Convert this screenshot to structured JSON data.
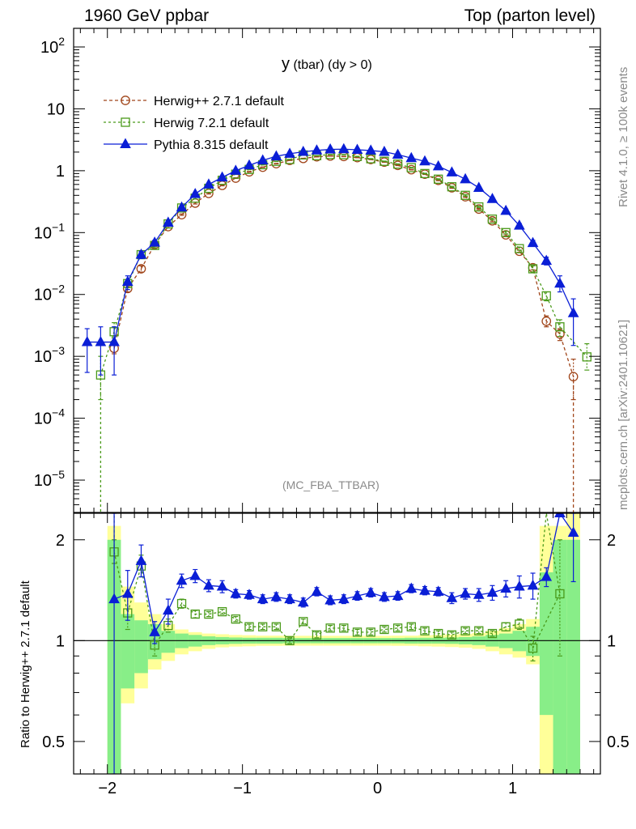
{
  "header": {
    "left": "1960 GeV ppbar",
    "right": "Top (parton level)"
  },
  "side": {
    "rivet": "Rivet 4.1.0, ≥ 100k events",
    "mcplots": "mcplots.cern.ch [arXiv:2401.10621]"
  },
  "chart_data": {
    "type": "line",
    "title": "y (tbar) (dy > 0)",
    "title_main": "y",
    "title_rest": "(tbar) (dy > 0)",
    "watermark": "(MC_FBA_TTBAR)",
    "xlabel": "",
    "ylabel": "",
    "ratio_ylabel": "Ratio to Herwig++ 2.7.1 default",
    "xlim": [
      -2.25,
      1.65
    ],
    "ylim": [
      3e-06,
      200
    ],
    "ratio_ylim": [
      0.4,
      2.4
    ],
    "x_ticks": [
      -2,
      -1,
      0,
      1
    ],
    "x_tick_labels": [
      "−2",
      "−1",
      "0",
      "1"
    ],
    "y_ticks": [
      {
        "value": 100,
        "base": "10",
        "exp": "2"
      },
      {
        "value": 10,
        "base": "10",
        "exp": ""
      },
      {
        "value": 1,
        "base": "1",
        "exp": ""
      },
      {
        "value": 0.1,
        "base": "10",
        "exp": "−1"
      },
      {
        "value": 0.01,
        "base": "10",
        "exp": "−2"
      },
      {
        "value": 0.001,
        "base": "10",
        "exp": "−3"
      },
      {
        "value": 0.0001,
        "base": "10",
        "exp": "−4"
      },
      {
        "value": 1e-05,
        "base": "10",
        "exp": "−5"
      }
    ],
    "ratio_ticks": [
      {
        "value": 2,
        "label": "2"
      },
      {
        "value": 1,
        "label": "1"
      },
      {
        "value": 0.5,
        "label": "0.5"
      }
    ],
    "bin_width": 0.1,
    "reference_bands": {
      "x_low": [
        -2.0,
        -1.9,
        -1.8,
        -1.7,
        -1.6,
        -1.5,
        -1.4,
        -1.3,
        -1.2,
        -1.1,
        -1.0,
        -0.9,
        -0.8,
        -0.7,
        -0.6,
        -0.5,
        -0.4,
        -0.3,
        -0.2,
        -0.1,
        0.0,
        0.1,
        0.2,
        0.3,
        0.4,
        0.5,
        0.6,
        0.7,
        0.8,
        0.9,
        1.0,
        1.1,
        1.2,
        1.3,
        1.4
      ],
      "green": [
        [
          0.3,
          2.0
        ],
        [
          0.72,
          1.2
        ],
        [
          0.8,
          1.15
        ],
        [
          0.88,
          1.12
        ],
        [
          0.92,
          1.07
        ],
        [
          0.95,
          1.05
        ],
        [
          0.96,
          1.04
        ],
        [
          0.97,
          1.03
        ],
        [
          0.975,
          1.025
        ],
        [
          0.978,
          1.022
        ],
        [
          0.98,
          1.02
        ],
        [
          0.98,
          1.02
        ],
        [
          0.98,
          1.02
        ],
        [
          0.982,
          1.018
        ],
        [
          0.982,
          1.018
        ],
        [
          0.982,
          1.018
        ],
        [
          0.982,
          1.018
        ],
        [
          0.982,
          1.018
        ],
        [
          0.982,
          1.018
        ],
        [
          0.982,
          1.018
        ],
        [
          0.982,
          1.018
        ],
        [
          0.982,
          1.018
        ],
        [
          0.98,
          1.02
        ],
        [
          0.98,
          1.02
        ],
        [
          0.98,
          1.02
        ],
        [
          0.978,
          1.022
        ],
        [
          0.975,
          1.025
        ],
        [
          0.97,
          1.03
        ],
        [
          0.96,
          1.04
        ],
        [
          0.95,
          1.05
        ],
        [
          0.93,
          1.07
        ],
        [
          0.9,
          1.1
        ],
        [
          0.6,
          1.6
        ],
        [
          0.3,
          2.0
        ],
        [
          0.3,
          2.0
        ]
      ],
      "yellow": [
        [
          0.3,
          2.2
        ],
        [
          0.65,
          1.45
        ],
        [
          0.72,
          1.3
        ],
        [
          0.82,
          1.2
        ],
        [
          0.87,
          1.12
        ],
        [
          0.91,
          1.08
        ],
        [
          0.93,
          1.06
        ],
        [
          0.945,
          1.05
        ],
        [
          0.955,
          1.045
        ],
        [
          0.96,
          1.04
        ],
        [
          0.962,
          1.038
        ],
        [
          0.965,
          1.035
        ],
        [
          0.965,
          1.035
        ],
        [
          0.966,
          1.034
        ],
        [
          0.966,
          1.034
        ],
        [
          0.966,
          1.034
        ],
        [
          0.966,
          1.034
        ],
        [
          0.966,
          1.034
        ],
        [
          0.966,
          1.034
        ],
        [
          0.966,
          1.034
        ],
        [
          0.966,
          1.034
        ],
        [
          0.965,
          1.035
        ],
        [
          0.965,
          1.035
        ],
        [
          0.962,
          1.038
        ],
        [
          0.96,
          1.04
        ],
        [
          0.957,
          1.043
        ],
        [
          0.953,
          1.047
        ],
        [
          0.945,
          1.055
        ],
        [
          0.93,
          1.07
        ],
        [
          0.91,
          1.09
        ],
        [
          0.89,
          1.12
        ],
        [
          0.85,
          1.16
        ],
        [
          0.35,
          2.2
        ],
        [
          0.35,
          2.2
        ],
        [
          0.35,
          2.4
        ]
      ]
    },
    "series": [
      {
        "name": "Herwig++ 2.7.1 default",
        "color": "#a0451a",
        "marker": "circle",
        "x": [
          -1.95,
          -1.85,
          -1.75,
          -1.65,
          -1.55,
          -1.45,
          -1.35,
          -1.25,
          -1.15,
          -1.05,
          -0.95,
          -0.85,
          -0.75,
          -0.65,
          -0.55,
          -0.45,
          -0.35,
          -0.25,
          -0.15,
          -0.05,
          0.05,
          0.15,
          0.25,
          0.35,
          0.45,
          0.55,
          0.65,
          0.75,
          0.85,
          0.95,
          1.05,
          1.15,
          1.25,
          1.35,
          1.45
        ],
        "y": [
          0.00135,
          0.0125,
          0.026,
          0.064,
          0.125,
          0.195,
          0.3,
          0.43,
          0.58,
          0.76,
          0.96,
          1.14,
          1.3,
          1.47,
          1.58,
          1.68,
          1.73,
          1.7,
          1.63,
          1.52,
          1.38,
          1.22,
          1.04,
          0.88,
          0.7,
          0.53,
          0.38,
          0.24,
          0.155,
          0.092,
          0.05,
          0.027,
          0.0037,
          0.0023,
          0.00047
        ],
        "ratio": [
          1.0,
          1.0,
          1.0,
          1.0,
          1.0,
          1.0,
          1.0,
          1.0,
          1.0,
          1.0,
          1.0,
          1.0,
          1.0,
          1.0,
          1.0,
          1.0,
          1.0,
          1.0,
          1.0,
          1.0,
          1.0,
          1.0,
          1.0,
          1.0,
          1.0,
          1.0,
          1.0,
          1.0,
          1.0,
          1.0,
          1.0,
          1.0,
          1.0,
          1.0,
          1.0
        ],
        "err_up": [
          0.0016,
          0.014,
          0.029,
          0.068,
          0.13,
          0.2,
          0.31,
          0.44,
          0.59,
          0.77,
          0.97,
          1.15,
          1.31,
          1.48,
          1.59,
          1.69,
          1.74,
          1.71,
          1.64,
          1.53,
          1.39,
          1.23,
          1.05,
          0.89,
          0.71,
          0.54,
          0.39,
          0.245,
          0.16,
          0.095,
          0.052,
          0.029,
          0.0045,
          0.0028,
          0.0009
        ],
        "err_down": [
          0.0011,
          0.011,
          0.023,
          0.06,
          0.12,
          0.19,
          0.29,
          0.42,
          0.57,
          0.75,
          0.95,
          1.13,
          1.29,
          1.46,
          1.57,
          1.67,
          1.72,
          1.69,
          1.62,
          1.51,
          1.37,
          1.21,
          1.03,
          0.87,
          0.69,
          0.52,
          0.37,
          0.235,
          0.15,
          0.089,
          0.048,
          0.025,
          0.003,
          0.0018,
          0.0002
        ],
        "ratio_up": [
          1.0,
          1.0,
          1.0,
          1.0,
          1.0,
          1.0,
          1.0,
          1.0,
          1.0,
          1.0,
          1.0,
          1.0,
          1.0,
          1.0,
          1.0,
          1.0,
          1.0,
          1.0,
          1.0,
          1.0,
          1.0,
          1.0,
          1.0,
          1.0,
          1.0,
          1.0,
          1.0,
          1.0,
          1.0,
          1.0,
          1.0,
          1.0,
          1.0,
          1.0,
          1.0
        ],
        "ratio_down": [
          1.0,
          1.0,
          1.0,
          1.0,
          1.0,
          1.0,
          1.0,
          1.0,
          1.0,
          1.0,
          1.0,
          1.0,
          1.0,
          1.0,
          1.0,
          1.0,
          1.0,
          1.0,
          1.0,
          1.0,
          1.0,
          1.0,
          1.0,
          1.0,
          1.0,
          1.0,
          1.0,
          1.0,
          1.0,
          1.0,
          1.0,
          1.0,
          1.0,
          1.0,
          1.0
        ],
        "tail_to_floor": {
          "x": 1.45,
          "side": "right"
        }
      },
      {
        "name": "Herwig 7.2.1 default",
        "color": "#4a9a1a",
        "marker": "square",
        "x": [
          -2.05,
          -1.95,
          -1.85,
          -1.75,
          -1.65,
          -1.55,
          -1.45,
          -1.35,
          -1.25,
          -1.15,
          -1.05,
          -0.95,
          -0.85,
          -0.75,
          -0.65,
          -0.55,
          -0.45,
          -0.35,
          -0.25,
          -0.15,
          -0.05,
          0.05,
          0.15,
          0.25,
          0.35,
          0.45,
          0.55,
          0.65,
          0.75,
          0.85,
          0.95,
          1.05,
          1.15,
          1.25,
          1.35,
          1.55
        ],
        "y": [
          0.0005,
          0.0025,
          0.015,
          0.044,
          0.062,
          0.138,
          0.25,
          0.36,
          0.52,
          0.7,
          0.88,
          1.05,
          1.25,
          1.42,
          1.52,
          1.8,
          1.75,
          1.83,
          1.82,
          1.7,
          1.56,
          1.42,
          1.28,
          1.12,
          0.9,
          0.73,
          0.55,
          0.4,
          0.26,
          0.165,
          0.1,
          0.055,
          0.026,
          0.0095,
          0.003,
          0.00098
        ],
        "ratio": [
          null,
          1.84,
          1.21,
          1.67,
          0.97,
          1.11,
          1.29,
          1.2,
          1.2,
          1.22,
          1.16,
          1.1,
          1.1,
          1.1,
          1.0,
          1.14,
          1.04,
          1.09,
          1.09,
          1.06,
          1.06,
          1.08,
          1.09,
          1.1,
          1.07,
          1.05,
          1.04,
          1.07,
          1.07,
          1.05,
          1.1,
          1.12,
          0.95,
          null,
          1.38,
          null
        ],
        "err_up": [
          0.001,
          0.0035,
          0.017,
          0.048,
          0.068,
          0.145,
          0.26,
          0.37,
          0.53,
          0.71,
          0.89,
          1.06,
          1.26,
          1.43,
          1.53,
          1.81,
          1.76,
          1.84,
          1.83,
          1.71,
          1.57,
          1.43,
          1.29,
          1.13,
          0.91,
          0.74,
          0.56,
          0.41,
          0.265,
          0.17,
          0.105,
          0.058,
          0.029,
          0.011,
          0.0039,
          0.0016
        ],
        "err_down": [
          0.0002,
          0.0018,
          0.013,
          0.04,
          0.057,
          0.131,
          0.24,
          0.35,
          0.51,
          0.69,
          0.87,
          1.04,
          1.24,
          1.41,
          1.51,
          1.79,
          1.74,
          1.82,
          1.81,
          1.69,
          1.55,
          1.41,
          1.27,
          1.11,
          0.89,
          0.72,
          0.54,
          0.39,
          0.255,
          0.16,
          0.095,
          0.052,
          0.023,
          0.0079,
          0.0021,
          0.0006
        ],
        "ratio_up": [
          null,
          2.0,
          1.35,
          1.8,
          1.05,
          1.16,
          1.33,
          1.23,
          1.22,
          1.24,
          1.18,
          1.12,
          1.12,
          1.12,
          1.02,
          1.16,
          1.06,
          1.11,
          1.11,
          1.08,
          1.08,
          1.1,
          1.11,
          1.12,
          1.09,
          1.07,
          1.06,
          1.09,
          1.09,
          1.07,
          1.13,
          1.16,
          1.03,
          null,
          2.0,
          null
        ],
        "ratio_down": [
          null,
          1.7,
          1.08,
          1.55,
          0.9,
          1.06,
          1.25,
          1.17,
          1.18,
          1.2,
          1.14,
          1.08,
          1.08,
          1.08,
          0.98,
          1.12,
          1.02,
          1.07,
          1.07,
          1.04,
          1.04,
          1.06,
          1.07,
          1.08,
          1.05,
          1.03,
          1.02,
          1.05,
          1.05,
          1.03,
          1.07,
          1.08,
          0.87,
          null,
          0.9,
          null
        ],
        "tail_to_floor": {
          "x": -2.05,
          "side": "left"
        },
        "ratio_spike": {
          "x": -1.95,
          "to": 2.4
        },
        "ratio_spike_right": {
          "x": 1.25,
          "to": 2.4
        }
      },
      {
        "name": "Pythia 8.315 default",
        "color": "#0a1ed6",
        "marker": "triangle",
        "x": [
          -2.15,
          -2.05,
          -1.95,
          -1.85,
          -1.75,
          -1.65,
          -1.55,
          -1.45,
          -1.35,
          -1.25,
          -1.15,
          -1.05,
          -0.95,
          -0.85,
          -0.75,
          -0.65,
          -0.55,
          -0.45,
          -0.35,
          -0.25,
          -0.15,
          -0.05,
          0.05,
          0.15,
          0.25,
          0.35,
          0.45,
          0.55,
          0.65,
          0.75,
          0.85,
          0.95,
          1.05,
          1.15,
          1.25,
          1.35,
          1.45
        ],
        "y": [
          0.0017,
          0.0017,
          0.0017,
          0.016,
          0.044,
          0.069,
          0.145,
          0.255,
          0.42,
          0.6,
          0.78,
          1.0,
          1.22,
          1.47,
          1.71,
          1.88,
          2.02,
          2.13,
          2.21,
          2.23,
          2.18,
          2.12,
          2.02,
          1.82,
          1.6,
          1.42,
          1.18,
          0.94,
          0.73,
          0.53,
          0.35,
          0.225,
          0.13,
          0.068,
          0.035,
          0.015,
          0.005
        ],
        "ratio": [
          null,
          null,
          1.33,
          1.38,
          1.73,
          1.06,
          1.23,
          1.51,
          1.56,
          1.46,
          1.45,
          1.38,
          1.37,
          1.33,
          1.35,
          1.33,
          1.3,
          1.4,
          1.32,
          1.33,
          1.36,
          1.39,
          1.35,
          1.36,
          1.43,
          1.41,
          1.4,
          1.34,
          1.38,
          1.37,
          1.39,
          1.43,
          1.45,
          1.46,
          1.55,
          2.4,
          2.1
        ],
        "err_up": [
          0.0028,
          0.003,
          0.003,
          0.02,
          0.05,
          0.075,
          0.155,
          0.27,
          0.44,
          0.62,
          0.8,
          1.02,
          1.24,
          1.49,
          1.73,
          1.9,
          2.04,
          2.15,
          2.23,
          2.25,
          2.2,
          2.14,
          2.04,
          1.84,
          1.62,
          1.44,
          1.2,
          0.96,
          0.75,
          0.55,
          0.37,
          0.24,
          0.14,
          0.075,
          0.04,
          0.02,
          0.0085
        ],
        "err_down": [
          0.00055,
          0.0005,
          0.0005,
          0.012,
          0.038,
          0.063,
          0.135,
          0.24,
          0.4,
          0.58,
          0.76,
          0.98,
          1.2,
          1.45,
          1.69,
          1.86,
          2.0,
          2.11,
          2.19,
          2.21,
          2.16,
          2.1,
          2.0,
          1.8,
          1.58,
          1.4,
          1.16,
          0.92,
          0.71,
          0.51,
          0.33,
          0.21,
          0.12,
          0.061,
          0.03,
          0.011,
          0.0015
        ],
        "ratio_up": [
          null,
          null,
          2.4,
          1.62,
          1.93,
          1.14,
          1.33,
          1.58,
          1.63,
          1.52,
          1.51,
          1.42,
          1.41,
          1.37,
          1.39,
          1.37,
          1.34,
          1.44,
          1.36,
          1.37,
          1.4,
          1.43,
          1.39,
          1.4,
          1.47,
          1.45,
          1.44,
          1.39,
          1.43,
          1.43,
          1.46,
          1.51,
          1.56,
          1.59,
          1.65,
          2.4,
          2.4
        ],
        "ratio_down": [
          null,
          null,
          0.4,
          1.15,
          1.55,
          0.98,
          1.12,
          1.44,
          1.49,
          1.4,
          1.39,
          1.34,
          1.33,
          1.29,
          1.31,
          1.29,
          1.26,
          1.36,
          1.28,
          1.29,
          1.32,
          1.35,
          1.31,
          1.32,
          1.39,
          1.37,
          1.36,
          1.29,
          1.33,
          1.31,
          1.32,
          1.35,
          1.34,
          1.33,
          1.45,
          2.4,
          1.5
        ]
      }
    ]
  }
}
